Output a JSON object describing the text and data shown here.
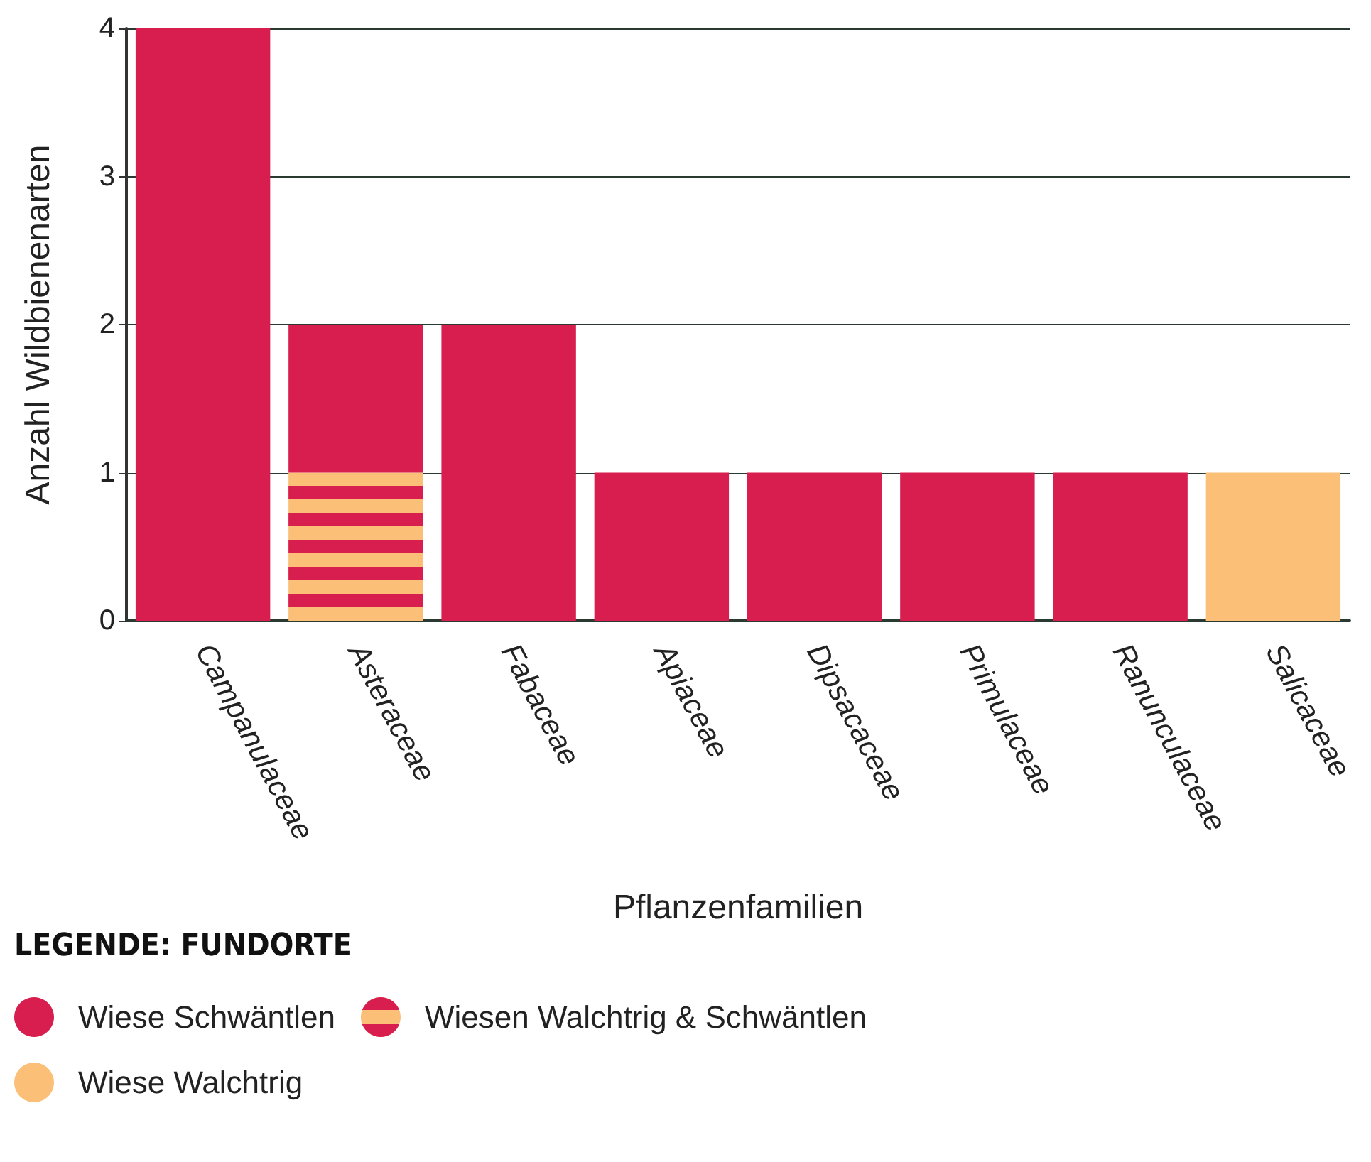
{
  "chart_data": {
    "type": "bar",
    "stacked": true,
    "categories": [
      "Campanulaceae",
      "Asteraceae",
      "Fabaceae",
      "Apiaceae",
      "Dipsacaceae",
      "Primulaceae",
      "Ranunculaceae",
      "Salicaceae"
    ],
    "series": [
      {
        "name": "Wiesen Walchtrig & Schwäntlen",
        "color": "#fbbf77",
        "values": [
          0,
          1,
          0,
          0,
          0,
          0,
          0,
          0
        ]
      },
      {
        "name": "Wiese Schwäntlen",
        "color": "#d81e4f",
        "values": [
          4,
          1,
          2,
          1,
          1,
          1,
          1,
          0
        ]
      },
      {
        "name": "Wiese Walchtrig",
        "color": "#fbbf77",
        "values": [
          0,
          0,
          0,
          0,
          0,
          0,
          0,
          1
        ]
      }
    ],
    "xlabel": "Pflanzenfamilien",
    "ylabel": "Anzahl Wildbienenarten",
    "legend_title": "LEGENDE: FUNDORTE",
    "ylim": [
      0,
      4
    ],
    "yticks": [
      0,
      1,
      2,
      3,
      4
    ],
    "grid": "y",
    "legend": "bottom left"
  }
}
